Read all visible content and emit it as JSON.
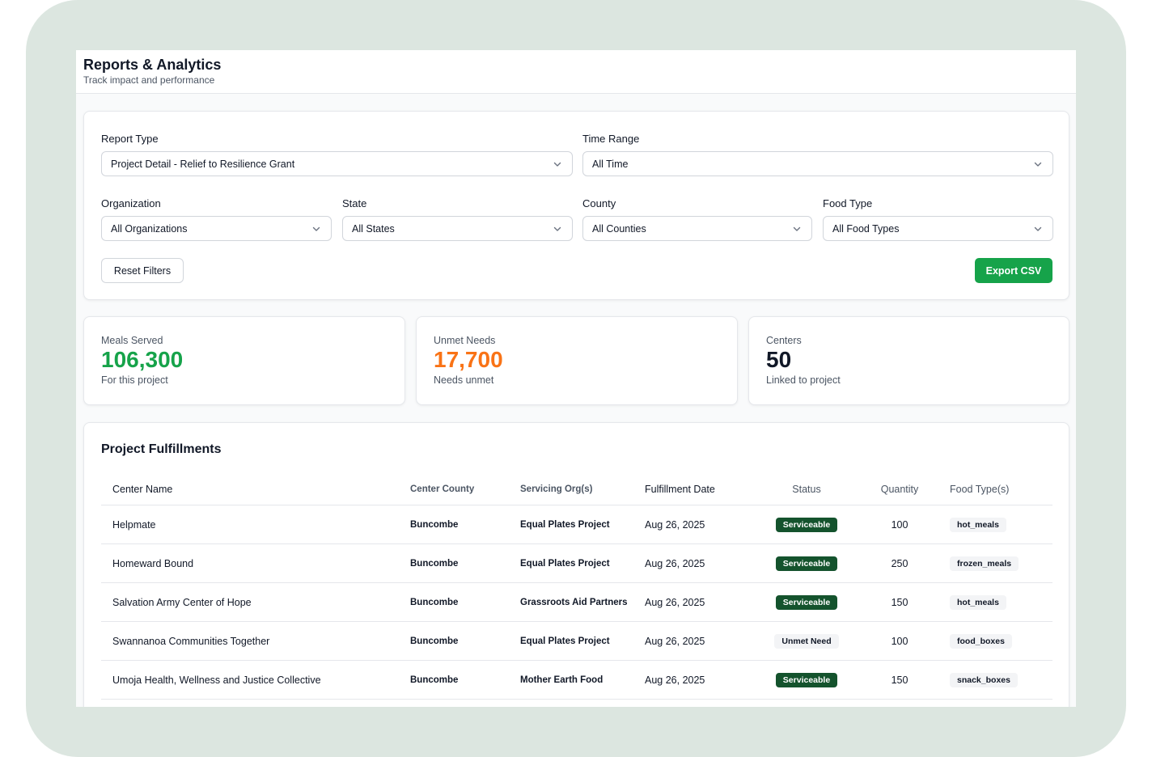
{
  "header": {
    "title": "Reports & Analytics",
    "subtitle": "Track impact and performance"
  },
  "filters": {
    "report_type": {
      "label": "Report Type",
      "value": "Project Detail - Relief to Resilience Grant"
    },
    "time_range": {
      "label": "Time Range",
      "value": "All Time"
    },
    "organization": {
      "label": "Organization",
      "value": "All Organizations"
    },
    "state": {
      "label": "State",
      "value": "All States"
    },
    "county": {
      "label": "County",
      "value": "All Counties"
    },
    "food_type": {
      "label": "Food Type",
      "value": "All Food Types"
    },
    "reset_label": "Reset Filters",
    "export_label": "Export CSV"
  },
  "stats": [
    {
      "label": "Meals Served",
      "value": "106,300",
      "sub": "For this project",
      "color": "#16a34a"
    },
    {
      "label": "Unmet Needs",
      "value": "17,700",
      "sub": "Needs unmet",
      "color": "#f97316"
    },
    {
      "label": "Centers",
      "value": "50",
      "sub": "Linked to project",
      "color": "#111827"
    }
  ],
  "fulfillments": {
    "title": "Project Fulfillments",
    "columns": [
      "Center Name",
      "Center County",
      "Servicing Org(s)",
      "Fulfillment Date",
      "Status",
      "Quantity",
      "Food Type(s)"
    ],
    "rows": [
      {
        "name": "Helpmate",
        "county": "Buncombe",
        "org": "Equal Plates Project",
        "date": "Aug 26, 2025",
        "status": "Serviceable",
        "qty": "100",
        "food": "hot_meals"
      },
      {
        "name": "Homeward Bound",
        "county": "Buncombe",
        "org": "Equal Plates Project",
        "date": "Aug 26, 2025",
        "status": "Serviceable",
        "qty": "250",
        "food": "frozen_meals"
      },
      {
        "name": "Salvation Army Center of Hope",
        "county": "Buncombe",
        "org": "Grassroots Aid Partners",
        "date": "Aug 26, 2025",
        "status": "Serviceable",
        "qty": "150",
        "food": "hot_meals"
      },
      {
        "name": "Swannanoa Communities Together",
        "county": "Buncombe",
        "org": "Equal Plates Project",
        "date": "Aug 26, 2025",
        "status": "Unmet Need",
        "qty": "100",
        "food": "food_boxes"
      },
      {
        "name": "Umoja Health, Wellness and Justice Collective",
        "county": "Buncombe",
        "org": "Mother Earth Food",
        "date": "Aug 26, 2025",
        "status": "Serviceable",
        "qty": "150",
        "food": "snack_boxes"
      }
    ]
  },
  "colors": {
    "accent_green": "#16a34a",
    "serviceable_badge": "#14532d",
    "unmet_orange": "#f97316",
    "frame": "#dce6e0"
  },
  "icons": {
    "select_chevron": "chevron-down-icon"
  }
}
